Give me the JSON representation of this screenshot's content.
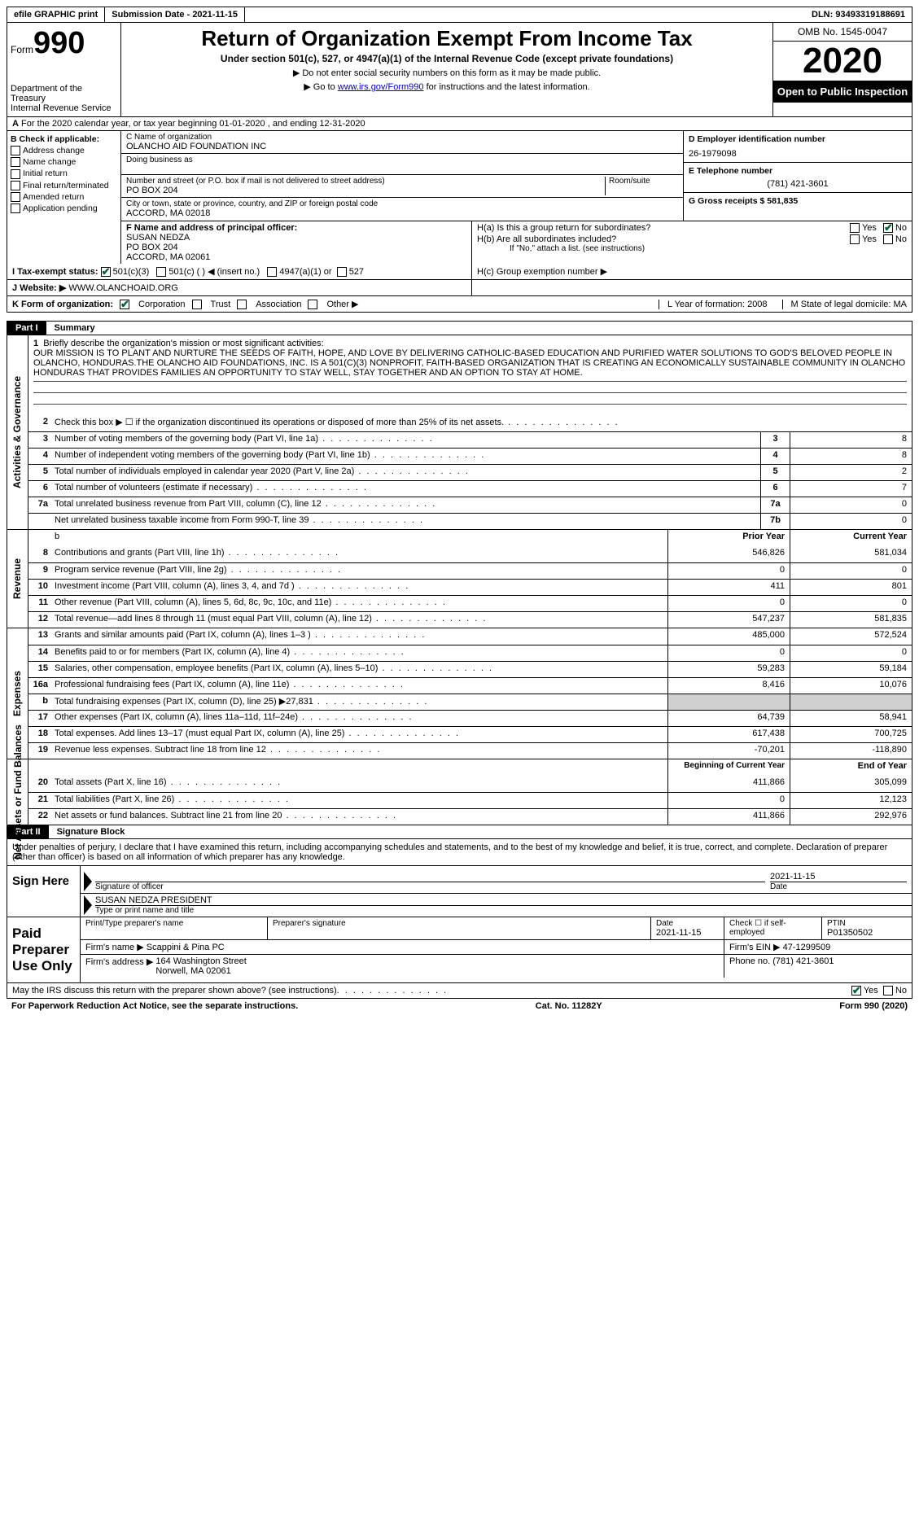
{
  "topbar": {
    "efile": "efile GRAPHIC print",
    "submission": "Submission Date - 2021-11-15",
    "dln": "DLN: 93493319188691"
  },
  "header": {
    "form": "Form",
    "formno": "990",
    "title": "Return of Organization Exempt From Income Tax",
    "subtitle": "Under section 501(c), 527, or 4947(a)(1) of the Internal Revenue Code (except private foundations)",
    "note1": "▶ Do not enter social security numbers on this form as it may be made public.",
    "note2_pre": "▶ Go to ",
    "note2_link": "www.irs.gov/Form990",
    "note2_post": " for instructions and the latest information.",
    "dept": "Department of the Treasury\nInternal Revenue Service",
    "omb": "OMB No. 1545-0047",
    "year": "2020",
    "open": "Open to Public Inspection"
  },
  "rowA": "For the 2020 calendar year, or tax year beginning 01-01-2020   , and ending 12-31-2020",
  "boxB": {
    "title": "B Check if applicable:",
    "opts": [
      "Address change",
      "Name change",
      "Initial return",
      "Final return/terminated",
      "Amended return",
      "Application pending"
    ]
  },
  "boxC": {
    "lbl_name": "C Name of organization",
    "org": "OLANCHO AID FOUNDATION INC",
    "lbl_dba": "Doing business as",
    "lbl_addr": "Number and street (or P.O. box if mail is not delivered to street address)",
    "addr": "PO BOX 204",
    "lbl_room": "Room/suite",
    "lbl_city": "City or town, state or province, country, and ZIP or foreign postal code",
    "city": "ACCORD, MA  02018"
  },
  "boxD": {
    "lbl": "D Employer identification number",
    "val": "26-1979098",
    "lblE": "E Telephone number",
    "valE": "(781) 421-3601",
    "lblG": "G Gross receipts $ 581,835"
  },
  "boxF": {
    "lbl": "F  Name and address of principal officer:",
    "line1": "SUSAN NEDZA",
    "line2": "PO BOX 204",
    "line3": "ACCORD, MA  02061"
  },
  "boxH": {
    "ha": "H(a)  Is this a group return for subordinates?",
    "hb": "H(b)  Are all subordinates included?",
    "hbnote": "If \"No,\" attach a list. (see instructions)",
    "hc": "H(c)  Group exemption number ▶"
  },
  "rowI": {
    "lbl": "I  Tax-exempt status:",
    "o1": "501(c)(3)",
    "o2": "501(c) (  ) ◀ (insert no.)",
    "o3": "4947(a)(1) or",
    "o4": "527"
  },
  "rowJ": {
    "lbl": "J  Website: ▶",
    "val": " WWW.OLANCHOAID.ORG"
  },
  "rowK": {
    "lbl": "K Form of organization:",
    "o1": "Corporation",
    "o2": "Trust",
    "o3": "Association",
    "o4": "Other ▶",
    "l": "L Year of formation: 2008",
    "m": "M State of legal domicile: MA"
  },
  "part1": {
    "label": "Part I",
    "title": "Summary"
  },
  "mission": {
    "lbl": "Briefly describe the organization's mission or most significant activities:",
    "txt": "OUR MISSION IS TO PLANT AND NURTURE THE SEEDS OF FAITH, HOPE, AND LOVE BY DELIVERING CATHOLIC-BASED EDUCATION AND PURIFIED WATER SOLUTIONS TO GOD'S BELOVED PEOPLE IN OLANCHO, HONDURAS.THE OLANCHO AID FOUNDATIONS, INC. IS A 501(C)(3) NONPROFIT, FAITH-BASED ORGANIZATION THAT IS CREATING AN ECONOMICALLY SUSTAINABLE COMMUNITY IN OLANCHO HONDURAS THAT PROVIDES FAMILIES AN OPPORTUNITY TO STAY WELL, STAY TOGETHER AND AN OPTION TO STAY AT HOME."
  },
  "gov_rows": [
    {
      "n": "2",
      "t": "Check this box ▶ ☐  if the organization discontinued its operations or disposed of more than 25% of its net assets.",
      "box": "",
      "v": ""
    },
    {
      "n": "3",
      "t": "Number of voting members of the governing body (Part VI, line 1a)",
      "box": "3",
      "v": "8"
    },
    {
      "n": "4",
      "t": "Number of independent voting members of the governing body (Part VI, line 1b)",
      "box": "4",
      "v": "8"
    },
    {
      "n": "5",
      "t": "Total number of individuals employed in calendar year 2020 (Part V, line 2a)",
      "box": "5",
      "v": "2"
    },
    {
      "n": "6",
      "t": "Total number of volunteers (estimate if necessary)",
      "box": "6",
      "v": "7"
    },
    {
      "n": "7a",
      "t": "Total unrelated business revenue from Part VIII, column (C), line 12",
      "box": "7a",
      "v": "0"
    },
    {
      "n": "",
      "t": "Net unrelated business taxable income from Form 990-T, line 39",
      "box": "7b",
      "v": "0"
    }
  ],
  "rev_hdr": {
    "prior": "Prior Year",
    "current": "Current Year"
  },
  "rev_rows": [
    {
      "n": "8",
      "t": "Contributions and grants (Part VIII, line 1h)",
      "p": "546,826",
      "c": "581,034"
    },
    {
      "n": "9",
      "t": "Program service revenue (Part VIII, line 2g)",
      "p": "0",
      "c": "0"
    },
    {
      "n": "10",
      "t": "Investment income (Part VIII, column (A), lines 3, 4, and 7d )",
      "p": "411",
      "c": "801"
    },
    {
      "n": "11",
      "t": "Other revenue (Part VIII, column (A), lines 5, 6d, 8c, 9c, 10c, and 11e)",
      "p": "0",
      "c": "0"
    },
    {
      "n": "12",
      "t": "Total revenue—add lines 8 through 11 (must equal Part VIII, column (A), line 12)",
      "p": "547,237",
      "c": "581,835"
    }
  ],
  "exp_rows": [
    {
      "n": "13",
      "t": "Grants and similar amounts paid (Part IX, column (A), lines 1–3 )",
      "p": "485,000",
      "c": "572,524"
    },
    {
      "n": "14",
      "t": "Benefits paid to or for members (Part IX, column (A), line 4)",
      "p": "0",
      "c": "0"
    },
    {
      "n": "15",
      "t": "Salaries, other compensation, employee benefits (Part IX, column (A), lines 5–10)",
      "p": "59,283",
      "c": "59,184"
    },
    {
      "n": "16a",
      "t": "Professional fundraising fees (Part IX, column (A), line 11e)",
      "p": "8,416",
      "c": "10,076"
    },
    {
      "n": "b",
      "t": "Total fundraising expenses (Part IX, column (D), line 25) ▶27,831",
      "p": "",
      "c": "",
      "shaded": true
    },
    {
      "n": "17",
      "t": "Other expenses (Part IX, column (A), lines 11a–11d, 11f–24e)",
      "p": "64,739",
      "c": "58,941"
    },
    {
      "n": "18",
      "t": "Total expenses. Add lines 13–17 (must equal Part IX, column (A), line 25)",
      "p": "617,438",
      "c": "700,725"
    },
    {
      "n": "19",
      "t": "Revenue less expenses. Subtract line 18 from line 12",
      "p": "-70,201",
      "c": "-118,890"
    }
  ],
  "na_hdr": {
    "begin": "Beginning of Current Year",
    "end": "End of Year"
  },
  "na_rows": [
    {
      "n": "20",
      "t": "Total assets (Part X, line 16)",
      "p": "411,866",
      "c": "305,099"
    },
    {
      "n": "21",
      "t": "Total liabilities (Part X, line 26)",
      "p": "0",
      "c": "12,123"
    },
    {
      "n": "22",
      "t": "Net assets or fund balances. Subtract line 21 from line 20",
      "p": "411,866",
      "c": "292,976"
    }
  ],
  "part2": {
    "label": "Part II",
    "title": "Signature Block"
  },
  "sig": {
    "decl": "Under penalties of perjury, I declare that I have examined this return, including accompanying schedules and statements, and to the best of my knowledge and belief, it is true, correct, and complete. Declaration of preparer (other than officer) is based on all information of which preparer has any knowledge.",
    "sign_here": "Sign Here",
    "sig_officer": "Signature of officer",
    "sig_date": "2021-11-15",
    "date_lbl": "Date",
    "name": "SUSAN NEDZA  PRESIDENT",
    "name_lbl": "Type or print name and title",
    "paid": "Paid Preparer Use Only",
    "prep_name_lbl": "Print/Type preparer's name",
    "prep_sig_lbl": "Preparer's signature",
    "prep_date": "2021-11-15",
    "check_self": "Check ☐ if self-employed",
    "ptin_lbl": "PTIN",
    "ptin": "P01350502",
    "firm_name_lbl": "Firm's name    ▶",
    "firm_name": "Scappini & Pina PC",
    "firm_ein_lbl": "Firm's EIN ▶",
    "firm_ein": "47-1299509",
    "firm_addr_lbl": "Firm's address ▶",
    "firm_addr": "164 Washington Street\nNorwell, MA  02061",
    "phone_lbl": "Phone no.",
    "phone": "(781) 421-3601",
    "discuss": "May the IRS discuss this return with the preparer shown above? (see instructions)",
    "yes": "Yes",
    "no": "No"
  },
  "footer": {
    "pra": "For Paperwork Reduction Act Notice, see the separate instructions.",
    "cat": "Cat. No. 11282Y",
    "form": "Form 990 (2020)"
  },
  "vlabels": {
    "gov": "Activities & Governance",
    "rev": "Revenue",
    "exp": "Expenses",
    "na": "Net Assets or Fund Balances"
  }
}
